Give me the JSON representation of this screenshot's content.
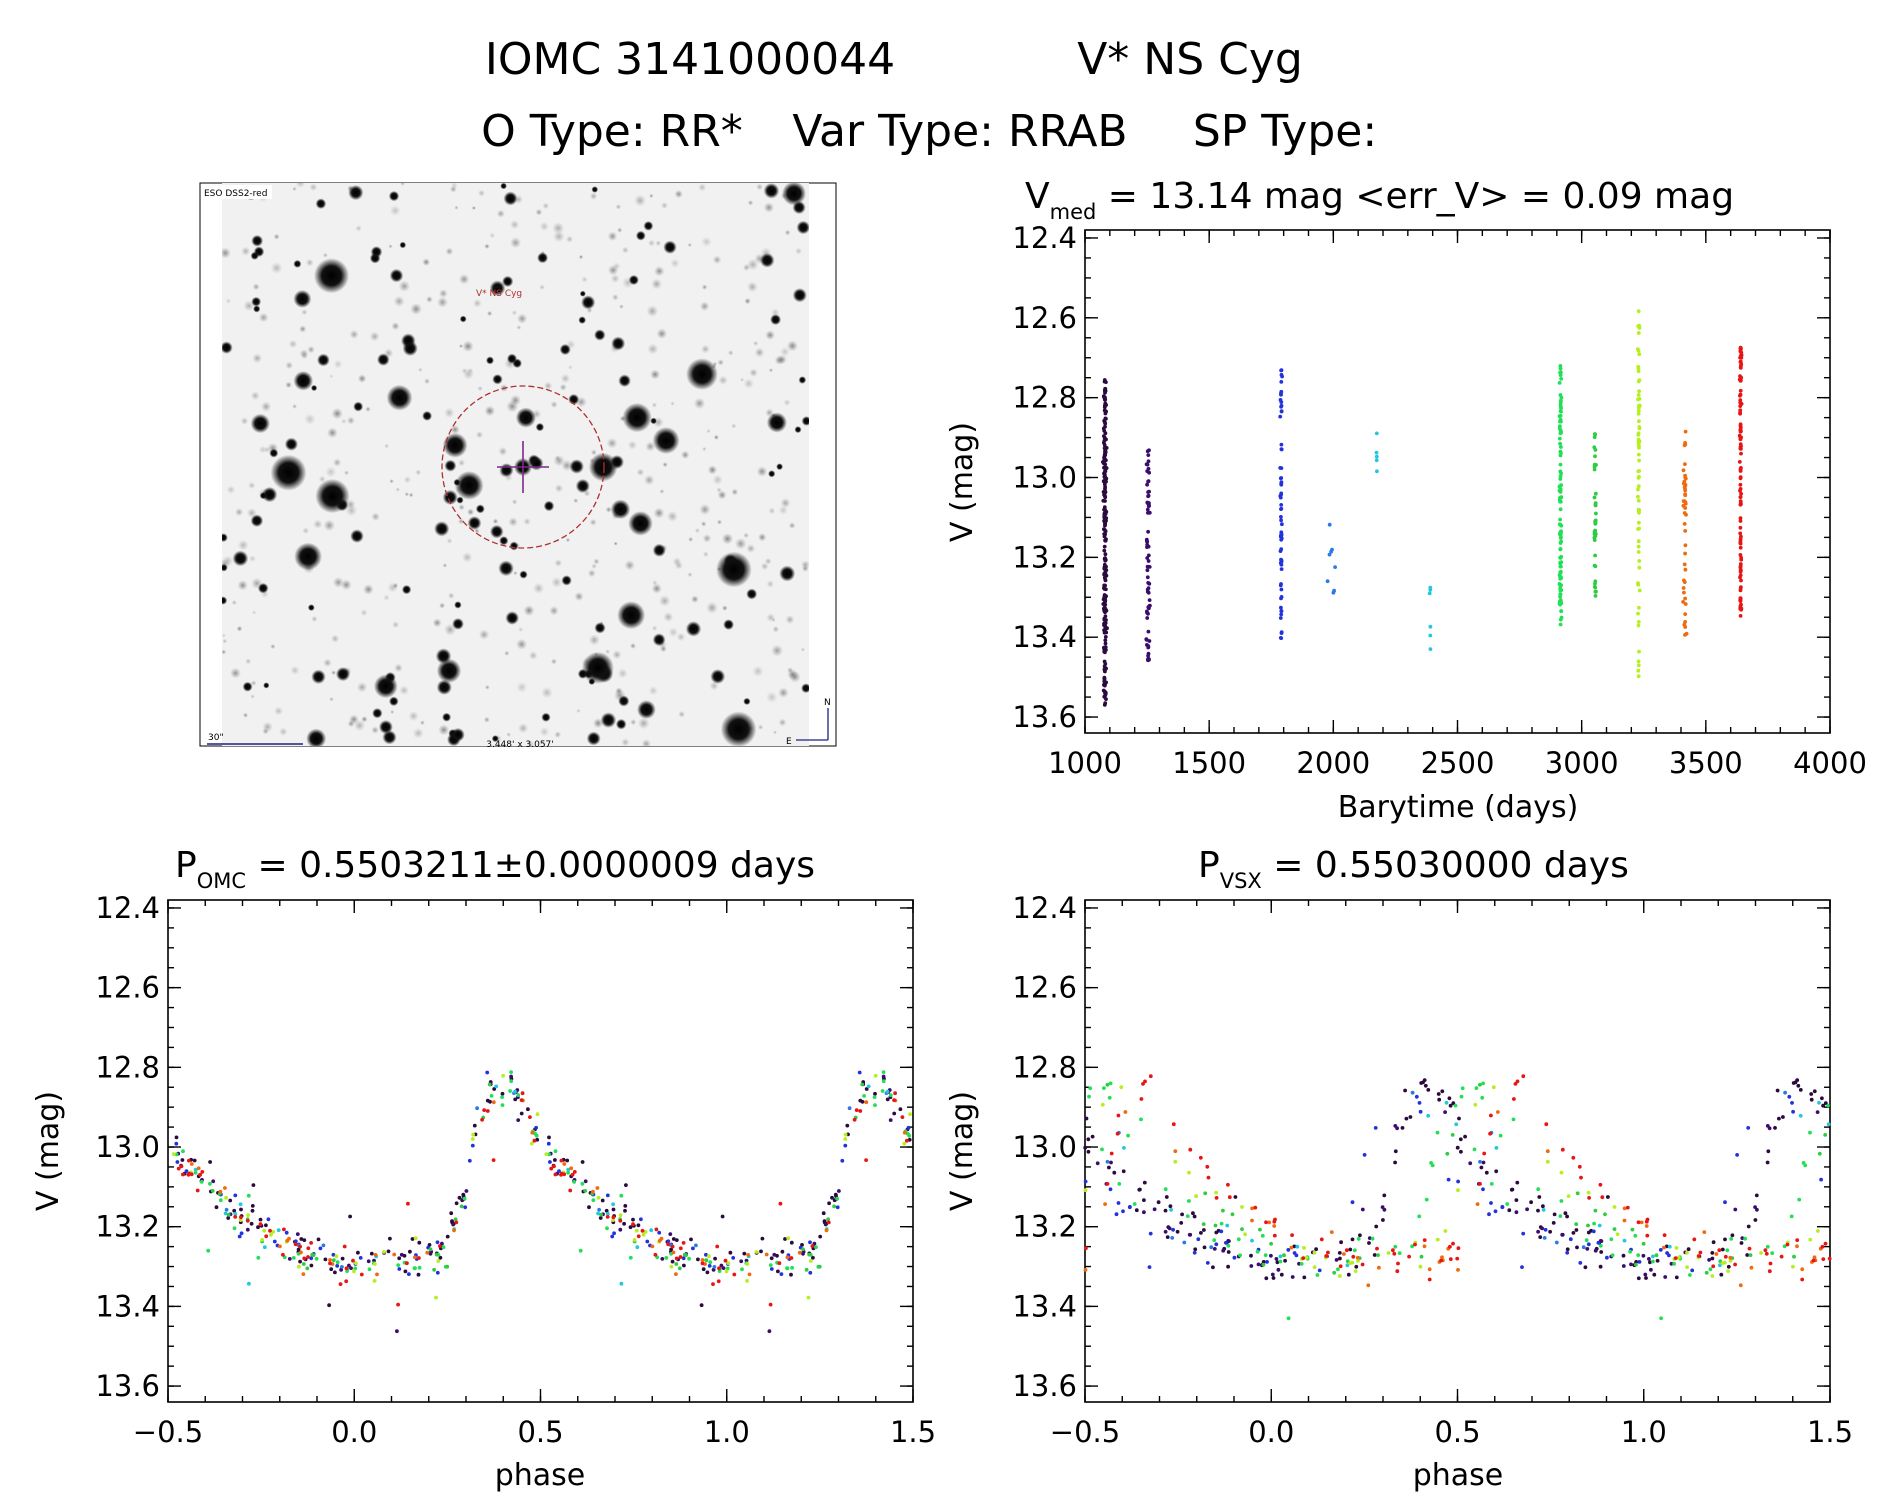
{
  "header": {
    "line1_left": "IOMC 3141000044",
    "line1_right": "V* NS Cyg",
    "line2_otype": "O Type: RR*",
    "line2_vartype": "Var Type: RRAB",
    "line2_sptype": "SP Type:"
  },
  "finder": {
    "survey_label": "ESO DSS2-red",
    "object_label": "V* NS Cyg",
    "scale_label": "30\"",
    "fov_label": "3.448' x 3.057'",
    "north_label": "N",
    "east_label": "E"
  },
  "colors": {
    "seasons": [
      "#2b0a3d",
      "#3a0d6e",
      "#2233dd",
      "#2a7be8",
      "#22c8e0",
      "#22e055",
      "#2ecc40",
      "#b5f01e",
      "#f06a10",
      "#e81515"
    ],
    "finder_circle": "#b03030",
    "finder_cross": "#7a2a8a"
  },
  "chart_data": [
    {
      "id": "lightcurve",
      "type": "scatter",
      "title_main": "V",
      "title_sub": "med",
      "title_rest": " = 13.14 mag <err_V> = 0.09 mag",
      "xlabel": "Barytime (days)",
      "ylabel": "V (mag)",
      "xlim": [
        1000,
        4000
      ],
      "ylim": [
        12.38,
        13.64
      ],
      "y_inverted": true,
      "xticks": [
        1000,
        1500,
        2000,
        2500,
        3000,
        3500,
        4000
      ],
      "yticks": [
        12.4,
        12.6,
        12.8,
        13.0,
        13.2,
        13.4,
        13.6
      ],
      "xtick_labels": [
        "1000",
        "1500",
        "2000",
        "2500",
        "3000",
        "3500",
        "4000"
      ],
      "ytick_labels": [
        "12.4",
        "12.6",
        "12.8",
        "13.0",
        "13.2",
        "13.4",
        "13.6"
      ],
      "seasons": [
        {
          "t": 1080,
          "tspread": 12,
          "vmin": 12.75,
          "vmax": 13.57,
          "n": 220,
          "color_index": 0
        },
        {
          "t": 1255,
          "tspread": 12,
          "vmin": 12.93,
          "vmax": 13.46,
          "n": 70,
          "color_index": 1
        },
        {
          "t": 1790,
          "tspread": 6,
          "vmin": 12.72,
          "vmax": 13.41,
          "n": 65,
          "color_index": 2
        },
        {
          "t": 2000,
          "tspread": 40,
          "vmin": 13.1,
          "vmax": 13.29,
          "n": 8,
          "color_index": 3
        },
        {
          "t": 2175,
          "tspread": 3,
          "vmin": 12.86,
          "vmax": 13.03,
          "n": 5,
          "color_index": 4
        },
        {
          "t": 2390,
          "tspread": 3,
          "vmin": 13.27,
          "vmax": 13.43,
          "n": 6,
          "color_index": 4
        },
        {
          "t": 2915,
          "tspread": 8,
          "vmin": 12.71,
          "vmax": 13.37,
          "n": 110,
          "color_index": 5
        },
        {
          "t": 3055,
          "tspread": 8,
          "vmin": 12.89,
          "vmax": 13.3,
          "n": 40,
          "color_index": 6
        },
        {
          "t": 3230,
          "tspread": 8,
          "vmin": 12.58,
          "vmax": 13.5,
          "n": 70,
          "color_index": 7
        },
        {
          "t": 3415,
          "tspread": 10,
          "vmin": 12.88,
          "vmax": 13.41,
          "n": 45,
          "color_index": 8
        },
        {
          "t": 3640,
          "tspread": 6,
          "vmin": 12.67,
          "vmax": 13.35,
          "n": 110,
          "color_index": 9
        }
      ]
    },
    {
      "id": "phase_omc",
      "type": "scatter",
      "title_main": "P",
      "title_sub": "OMC",
      "title_rest": " = 0.5503211±0.0000009 days",
      "xlabel": "phase",
      "ylabel": "V (mag)",
      "xlim": [
        -0.5,
        1.5
      ],
      "ylim": [
        12.38,
        13.64
      ],
      "y_inverted": true,
      "xticks": [
        -0.5,
        0.0,
        0.5,
        1.0,
        1.5
      ],
      "yticks": [
        12.4,
        12.6,
        12.8,
        13.0,
        13.2,
        13.4,
        13.6
      ],
      "xtick_labels": [
        "−0.5",
        "0.0",
        "0.5",
        "1.0",
        "1.5"
      ],
      "ytick_labels": [
        "12.4",
        "12.6",
        "12.8",
        "13.0",
        "13.2",
        "13.4",
        "13.6"
      ],
      "period_days": 0.5503211,
      "curve_phase": [
        0.0,
        0.05,
        0.1,
        0.15,
        0.2,
        0.25,
        0.3,
        0.33,
        0.36,
        0.4,
        0.43,
        0.48,
        0.55,
        0.62,
        0.7,
        0.8,
        0.9,
        1.0
      ],
      "curve_mag": [
        13.3,
        13.29,
        13.28,
        13.27,
        13.28,
        13.26,
        13.1,
        12.93,
        12.88,
        12.86,
        12.85,
        12.96,
        13.06,
        13.12,
        13.18,
        13.23,
        13.27,
        13.3
      ],
      "scatter_mag": 0.05,
      "phase_shift_per_season": [
        0,
        0,
        0,
        0,
        0,
        0,
        0,
        0,
        0,
        0
      ],
      "points_per_season": [
        80,
        30,
        30,
        6,
        5,
        5,
        40,
        18,
        25,
        20,
        45
      ]
    },
    {
      "id": "phase_vsx",
      "type": "scatter",
      "title_main": "P",
      "title_sub": "VSX",
      "title_rest": " = 0.55030000 days",
      "xlabel": "phase",
      "ylabel": "V (mag)",
      "xlim": [
        -0.5,
        1.5
      ],
      "ylim": [
        12.38,
        13.64
      ],
      "y_inverted": true,
      "xticks": [
        -0.5,
        0.0,
        0.5,
        1.0,
        1.5
      ],
      "yticks": [
        12.4,
        12.6,
        12.8,
        13.0,
        13.2,
        13.4,
        13.6
      ],
      "xtick_labels": [
        "−0.5",
        "0.0",
        "0.5",
        "1.0",
        "1.5"
      ],
      "ytick_labels": [
        "12.4",
        "12.6",
        "12.8",
        "13.0",
        "13.2",
        "13.4",
        "13.6"
      ],
      "period_days": 0.5503,
      "curve_phase": [
        0.0,
        0.05,
        0.1,
        0.15,
        0.2,
        0.25,
        0.3,
        0.33,
        0.36,
        0.4,
        0.43,
        0.48,
        0.55,
        0.62,
        0.7,
        0.8,
        0.9,
        1.0
      ],
      "curve_mag": [
        13.3,
        13.29,
        13.28,
        13.27,
        13.28,
        13.26,
        13.1,
        12.93,
        12.88,
        12.86,
        12.85,
        12.96,
        13.06,
        13.12,
        13.18,
        13.23,
        13.27,
        13.3
      ],
      "scatter_mag": 0.05,
      "phase_shift_per_season": [
        0.02,
        0.0,
        -0.06,
        -0.02,
        0.05,
        0.08,
        0.12,
        0.16,
        0.2,
        0.26
      ],
      "points_per_season": [
        80,
        30,
        30,
        6,
        5,
        5,
        40,
        18,
        25,
        20,
        45
      ]
    }
  ]
}
